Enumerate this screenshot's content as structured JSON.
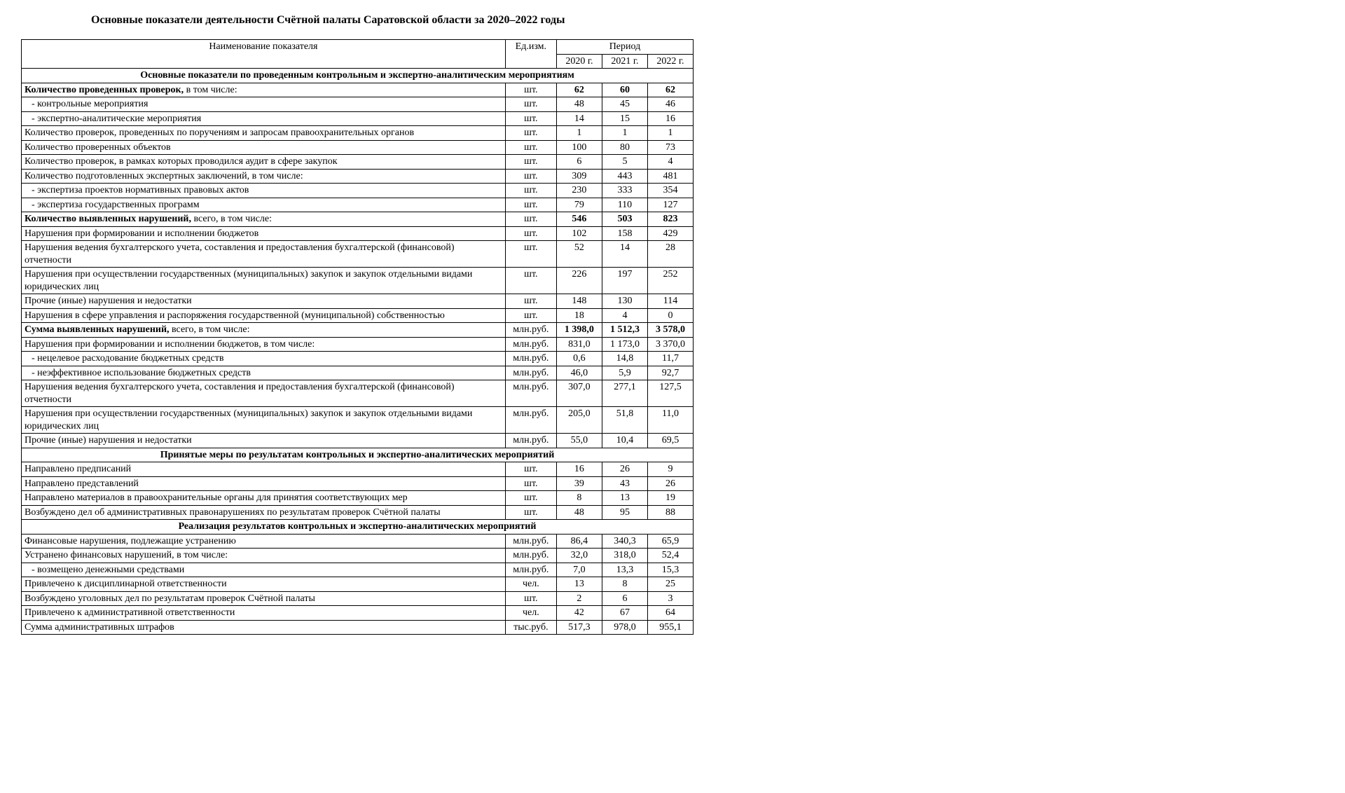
{
  "title": "Основные показатели деятельности Счётной палаты Саратовской области за 2020–2022 годы",
  "header": {
    "col_name": "Наименование показателя",
    "col_unit": "Ед.изм.",
    "col_period": "Период",
    "years": [
      "2020 г.",
      "2021 г.",
      "2022 г."
    ]
  },
  "sections": [
    {
      "title": "Основные показатели по проведенным контрольным и экспертно-аналитическим мероприятиям",
      "rows": [
        {
          "name": "Количество проведенных проверок, в том числе:",
          "unit": "шт.",
          "v": [
            "62",
            "60",
            "62"
          ],
          "bold": true
        },
        {
          "name": "- контрольные мероприятия",
          "unit": "шт.",
          "v": [
            "48",
            "45",
            "46"
          ],
          "indent": 1
        },
        {
          "name": "- экспертно-аналитические мероприятия",
          "unit": "шт.",
          "v": [
            "14",
            "15",
            "16"
          ],
          "indent": 1
        },
        {
          "name": "Количество проверок, проведенных по поручениям и запросам правоохранительных органов",
          "unit": "шт.",
          "v": [
            "1",
            "1",
            "1"
          ]
        },
        {
          "name": "Количество проверенных объектов",
          "unit": "шт.",
          "v": [
            "100",
            "80",
            "73"
          ]
        },
        {
          "name": "Количество проверок, в рамках которых проводился аудит в сфере закупок",
          "unit": "шт.",
          "v": [
            "6",
            "5",
            "4"
          ]
        },
        {
          "name": "Количество подготовленных экспертных заключений, в том числе:",
          "unit": "шт.",
          "v": [
            "309",
            "443",
            "481"
          ]
        },
        {
          "name": "- экспертиза проектов нормативных правовых актов",
          "unit": "шт.",
          "v": [
            "230",
            "333",
            "354"
          ],
          "indent": 1
        },
        {
          "name": "- экспертиза государственных программ",
          "unit": "шт.",
          "v": [
            "79",
            "110",
            "127"
          ],
          "indent": 1
        },
        {
          "name": "Количество выявленных нарушений, всего, в том числе:",
          "unit": "шт.",
          "v": [
            "546",
            "503",
            "823"
          ],
          "bold": true
        },
        {
          "name": "Нарушения при формировании и исполнении бюджетов",
          "unit": "шт.",
          "v": [
            "102",
            "158",
            "429"
          ]
        },
        {
          "name": "Нарушения ведения бухгалтерского учета, составления и предоставления бухгалтерской (финансовой) отчетности",
          "unit": "шт.",
          "v": [
            "52",
            "14",
            "28"
          ]
        },
        {
          "name": "Нарушения при осуществлении государственных (муниципальных) закупок и закупок отдельными видами юридических лиц",
          "unit": "шт.",
          "v": [
            "226",
            "197",
            "252"
          ]
        },
        {
          "name": "Прочие (иные) нарушения и недостатки",
          "unit": "шт.",
          "v": [
            "148",
            "130",
            "114"
          ]
        },
        {
          "name": "Нарушения в сфере управления и распоряжения государственной (муниципальной) собственностью",
          "unit": "шт.",
          "v": [
            "18",
            "4",
            "0"
          ]
        },
        {
          "name": "Сумма выявленных нарушений, всего, в том числе:",
          "unit": "млн.руб.",
          "v": [
            "1 398,0",
            "1 512,3",
            "3 578,0"
          ],
          "bold": true
        },
        {
          "name": "Нарушения при формировании и исполнении бюджетов, в том числе:",
          "unit": "млн.руб.",
          "v": [
            "831,0",
            "1 173,0",
            "3 370,0"
          ]
        },
        {
          "name": "- нецелевое расходование бюджетных средств",
          "unit": "млн.руб.",
          "v": [
            "0,6",
            "14,8",
            "11,7"
          ],
          "indent": 1
        },
        {
          "name": "- неэффективное использование бюджетных средств",
          "unit": "млн.руб.",
          "v": [
            "46,0",
            "5,9",
            "92,7"
          ],
          "indent": 1
        },
        {
          "name": "Нарушения ведения бухгалтерского учета, составления и предоставления бухгалтерской (финансовой) отчетности",
          "unit": "млн.руб.",
          "v": [
            "307,0",
            "277,1",
            "127,5"
          ]
        },
        {
          "name": "Нарушения при осуществлении государственных (муниципальных) закупок и закупок отдельными видами юридических лиц",
          "unit": "млн.руб.",
          "v": [
            "205,0",
            "51,8",
            "11,0"
          ]
        },
        {
          "name": "Прочие (иные) нарушения и недостатки",
          "unit": "млн.руб.",
          "v": [
            "55,0",
            "10,4",
            "69,5"
          ]
        }
      ]
    },
    {
      "title": "Принятые меры по результатам контрольных и экспертно-аналитических мероприятий",
      "rows": [
        {
          "name": "Направлено предписаний",
          "unit": "шт.",
          "v": [
            "16",
            "26",
            "9"
          ]
        },
        {
          "name": "Направлено представлений",
          "unit": "шт.",
          "v": [
            "39",
            "43",
            "26"
          ]
        },
        {
          "name": "Направлено материалов в правоохранительные органы для принятия соответствующих мер",
          "unit": "шт.",
          "v": [
            "8",
            "13",
            "19"
          ]
        },
        {
          "name": "Возбуждено дел об административных правонарушениях по результатам проверок Счётной палаты",
          "unit": "шт.",
          "v": [
            "48",
            "95",
            "88"
          ]
        }
      ]
    },
    {
      "title": "Реализация результатов контрольных и экспертно-аналитических мероприятий",
      "rows": [
        {
          "name": "Финансовые нарушения, подлежащие устранению",
          "unit": "млн.руб.",
          "v": [
            "86,4",
            "340,3",
            "65,9"
          ]
        },
        {
          "name": "Устранено финансовых нарушений, в том числе:",
          "unit": "млн.руб.",
          "v": [
            "32,0",
            "318,0",
            "52,4"
          ]
        },
        {
          "name": "- возмещено денежными средствами",
          "unit": "млн.руб.",
          "v": [
            "7,0",
            "13,3",
            "15,3"
          ],
          "indent": 1
        },
        {
          "name": "Привлечено к дисциплинарной ответственности",
          "unit": "чел.",
          "v": [
            "13",
            "8",
            "25"
          ]
        },
        {
          "name": "Возбуждено уголовных дел по результатам проверок Счётной палаты",
          "unit": "шт.",
          "v": [
            "2",
            "6",
            "3"
          ]
        },
        {
          "name": "Привлечено к административной ответственности",
          "unit": "чел.",
          "v": [
            "42",
            "67",
            "64"
          ]
        },
        {
          "name": "Сумма административных штрафов",
          "unit": "тыс.руб.",
          "v": [
            "517,3",
            "978,0",
            "955,1"
          ]
        }
      ]
    }
  ]
}
